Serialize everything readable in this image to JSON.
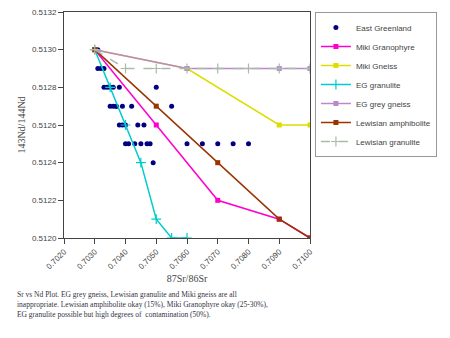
{
  "chart_data": {
    "type": "scatter",
    "xlabel": "87Sr/86Sr",
    "ylabel": "143Nd/144Nd",
    "annotation": "Sr vs Nd Plot. EG grey gneiss, Lewisian granulite and Miki gneiss are all\ninappropriate. Lewisian amphibolite okay (15%), Miki Granophyre okay (25-30%),\nEG granulite possible but high degrees of  contamination (50%).",
    "xlim": [
      0.702,
      0.71
    ],
    "ylim": [
      0.512,
      0.5132
    ],
    "xticks": [
      {
        "value": 0.702,
        "label": "0.7020"
      },
      {
        "value": 0.703,
        "label": "0.7030"
      },
      {
        "value": 0.704,
        "label": "0.7040"
      },
      {
        "value": 0.705,
        "label": "0.7050"
      },
      {
        "value": 0.706,
        "label": "0.7060"
      },
      {
        "value": 0.707,
        "label": "0.7070"
      },
      {
        "value": 0.708,
        "label": "0.7080"
      },
      {
        "value": 0.709,
        "label": "0.7090"
      },
      {
        "value": 0.71,
        "label": "0.7100"
      }
    ],
    "yticks": [
      {
        "value": 0.512,
        "label": "0.5120"
      },
      {
        "value": 0.5122,
        "label": "0.5122"
      },
      {
        "value": 0.5124,
        "label": "0.5124"
      },
      {
        "value": 0.5126,
        "label": "0.5126"
      },
      {
        "value": 0.5128,
        "label": "0.5128"
      },
      {
        "value": 0.513,
        "label": "0.5130"
      },
      {
        "value": 0.5132,
        "label": "0.5132"
      }
    ],
    "grid": false,
    "legend": "right",
    "series": [
      {
        "name": "East Greenland",
        "type": "scatter",
        "color": "#000080",
        "marker": "dot",
        "line_style": "none",
        "x": [
          0.703,
          0.7031,
          0.7031,
          0.7032,
          0.7033,
          0.7033,
          0.7034,
          0.7035,
          0.7035,
          0.7036,
          0.7036,
          0.7037,
          0.7037,
          0.7038,
          0.7038,
          0.7039,
          0.7039,
          0.704,
          0.704,
          0.7041,
          0.7042,
          0.7043,
          0.7044,
          0.7045,
          0.7046,
          0.7047,
          0.7048,
          0.7049,
          0.705,
          0.7055,
          0.706,
          0.7065,
          0.707,
          0.7075,
          0.708
        ],
        "values": [
          0.513,
          0.513,
          0.5129,
          0.5129,
          0.5129,
          0.5128,
          0.5128,
          0.5128,
          0.5127,
          0.5127,
          0.5128,
          0.5127,
          0.5127,
          0.5128,
          0.5126,
          0.5127,
          0.5126,
          0.5126,
          0.5125,
          0.5125,
          0.5127,
          0.5125,
          0.5126,
          0.5125,
          0.5126,
          0.5125,
          0.5125,
          0.5124,
          0.5128,
          0.5127,
          0.5125,
          0.5125,
          0.5125,
          0.5125,
          0.5125
        ]
      },
      {
        "name": "Miki Granophyre",
        "type": "line",
        "color": "#ff00cc",
        "marker": "square",
        "line_style": "solid",
        "x": [
          0.703,
          0.705,
          0.707,
          0.709,
          0.71
        ],
        "values": [
          0.513,
          0.5126,
          0.5122,
          0.5121,
          0.512
        ]
      },
      {
        "name": "Miki Gneiss",
        "type": "line",
        "color": "#dddd00",
        "marker": "square",
        "line_style": "solid",
        "x": [
          0.703,
          0.706,
          0.709,
          0.71
        ],
        "values": [
          0.513,
          0.5129,
          0.5126,
          0.5126
        ]
      },
      {
        "name": "EG granulite",
        "type": "line",
        "color": "#00cccc",
        "marker": "plus",
        "line_style": "solid",
        "x": [
          0.703,
          0.7035,
          0.704,
          0.7045,
          0.705,
          0.7055,
          0.706
        ],
        "values": [
          0.513,
          0.5128,
          0.5126,
          0.5124,
          0.5121,
          0.512,
          0.512
        ]
      },
      {
        "name": "EG grey gneiss",
        "type": "line",
        "color": "#bb88cc",
        "marker": "square",
        "line_style": "solid",
        "x": [
          0.703,
          0.706,
          0.709,
          0.71
        ],
        "values": [
          0.513,
          0.5129,
          0.5129,
          0.5129
        ]
      },
      {
        "name": "Lewisian amphibolite",
        "type": "line",
        "color": "#993300",
        "marker": "square",
        "line_style": "solid",
        "x": [
          0.703,
          0.705,
          0.707,
          0.709,
          0.71
        ],
        "values": [
          0.513,
          0.5127,
          0.5124,
          0.5121,
          0.512
        ]
      },
      {
        "name": "Lewisian granulite",
        "type": "line",
        "color": "#aabbaa",
        "marker": "plus",
        "line_style": "dashed",
        "x": [
          0.703,
          0.704,
          0.705,
          0.706,
          0.707,
          0.708,
          0.709,
          0.71
        ],
        "values": [
          0.513,
          0.5129,
          0.5129,
          0.5129,
          0.5129,
          0.5129,
          0.5129,
          0.5129
        ]
      }
    ]
  }
}
